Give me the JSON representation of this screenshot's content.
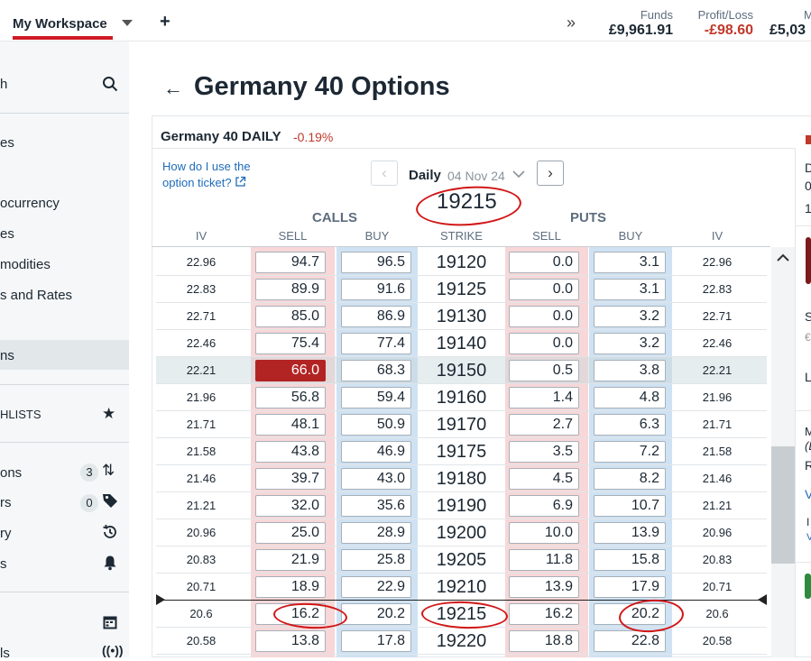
{
  "topbar": {
    "workspace_label": "My Workspace",
    "add_label": "+",
    "expand_label": "»",
    "funds_label": "Funds",
    "funds_value": "£9,961.91",
    "pl_label": "Profit/Loss",
    "pl_value": "-£98.60",
    "margin_label": "M",
    "margin_value": "£5,03"
  },
  "sidebar": {
    "search_label": "h",
    "items": [
      {
        "label": "es"
      },
      {
        "label": "ocurrency"
      },
      {
        "label": "es"
      },
      {
        "label": "modities"
      },
      {
        "label": "s and Rates"
      },
      {
        "label": "ns"
      },
      {
        "label": "HLISTS"
      },
      {
        "label": "ons",
        "badge": "3"
      },
      {
        "label": "rs",
        "badge": "0"
      },
      {
        "label": "ry"
      },
      {
        "label": "s"
      },
      {
        "label": "ls"
      }
    ]
  },
  "page": {
    "back_label": "←",
    "title": "Germany 40 Options"
  },
  "instrument": {
    "name": "Germany 40 DAILY",
    "change": "-0.19%"
  },
  "help": {
    "text": "How do I use the option ticket?",
    "icon": "external-link-icon"
  },
  "expiry": {
    "label": "Daily",
    "date": "04 Nov 24",
    "prev": "‹",
    "next": "›"
  },
  "atm_strike": "19215",
  "groups": {
    "calls": "CALLS",
    "puts": "PUTS"
  },
  "columns": {
    "iv": "IV",
    "sell": "SELL",
    "buy": "BUY",
    "strike": "STRIKE"
  },
  "rows": [
    {
      "call_iv": "22.96",
      "call_sell": "94.7",
      "call_buy": "96.5",
      "strike": "19120",
      "put_sell": "0.0",
      "put_buy": "3.1",
      "put_iv": "22.96"
    },
    {
      "call_iv": "22.83",
      "call_sell": "89.9",
      "call_buy": "91.6",
      "strike": "19125",
      "put_sell": "0.0",
      "put_buy": "3.1",
      "put_iv": "22.83"
    },
    {
      "call_iv": "22.71",
      "call_sell": "85.0",
      "call_buy": "86.9",
      "strike": "19130",
      "put_sell": "0.0",
      "put_buy": "3.2",
      "put_iv": "22.71"
    },
    {
      "call_iv": "22.46",
      "call_sell": "75.4",
      "call_buy": "77.4",
      "strike": "19140",
      "put_sell": "0.0",
      "put_buy": "3.2",
      "put_iv": "22.46"
    },
    {
      "call_iv": "22.21",
      "call_sell": "66.0",
      "call_buy": "68.3",
      "strike": "19150",
      "put_sell": "0.5",
      "put_buy": "3.8",
      "put_iv": "22.21"
    },
    {
      "call_iv": "21.96",
      "call_sell": "56.8",
      "call_buy": "59.4",
      "strike": "19160",
      "put_sell": "1.4",
      "put_buy": "4.8",
      "put_iv": "21.96"
    },
    {
      "call_iv": "21.71",
      "call_sell": "48.1",
      "call_buy": "50.9",
      "strike": "19170",
      "put_sell": "2.7",
      "put_buy": "6.3",
      "put_iv": "21.71"
    },
    {
      "call_iv": "21.58",
      "call_sell": "43.8",
      "call_buy": "46.9",
      "strike": "19175",
      "put_sell": "3.5",
      "put_buy": "7.2",
      "put_iv": "21.58"
    },
    {
      "call_iv": "21.46",
      "call_sell": "39.7",
      "call_buy": "43.0",
      "strike": "19180",
      "put_sell": "4.5",
      "put_buy": "8.2",
      "put_iv": "21.46"
    },
    {
      "call_iv": "21.21",
      "call_sell": "32.0",
      "call_buy": "35.6",
      "strike": "19190",
      "put_sell": "6.9",
      "put_buy": "10.7",
      "put_iv": "21.21"
    },
    {
      "call_iv": "20.96",
      "call_sell": "25.0",
      "call_buy": "28.9",
      "strike": "19200",
      "put_sell": "10.0",
      "put_buy": "13.9",
      "put_iv": "20.96"
    },
    {
      "call_iv": "20.83",
      "call_sell": "21.9",
      "call_buy": "25.8",
      "strike": "19205",
      "put_sell": "11.8",
      "put_buy": "15.8",
      "put_iv": "20.83"
    },
    {
      "call_iv": "20.71",
      "call_sell": "18.9",
      "call_buy": "22.9",
      "strike": "19210",
      "put_sell": "13.9",
      "put_buy": "17.9",
      "put_iv": "20.71"
    },
    {
      "call_iv": "20.6",
      "call_sell": "16.2",
      "call_buy": "20.2",
      "strike": "19215",
      "put_sell": "16.2",
      "put_buy": "20.2",
      "put_iv": "20.6"
    },
    {
      "call_iv": "20.58",
      "call_sell": "13.8",
      "call_buy": "17.8",
      "strike": "19220",
      "put_sell": "18.8",
      "put_buy": "22.8",
      "put_iv": "20.58"
    }
  ],
  "right_panel": {
    "letters": [
      "D",
      "0",
      "1",
      "S",
      "€",
      "L",
      "M",
      "(L",
      "R",
      "V",
      "I",
      "V"
    ]
  },
  "colors": {
    "sell_band": "#f7d7d8",
    "buy_band": "#cfe2f3",
    "selected_sell": "#b22424",
    "negative": "#c0392b",
    "accent_red": "#d01b24",
    "annotation": "#d11616"
  }
}
